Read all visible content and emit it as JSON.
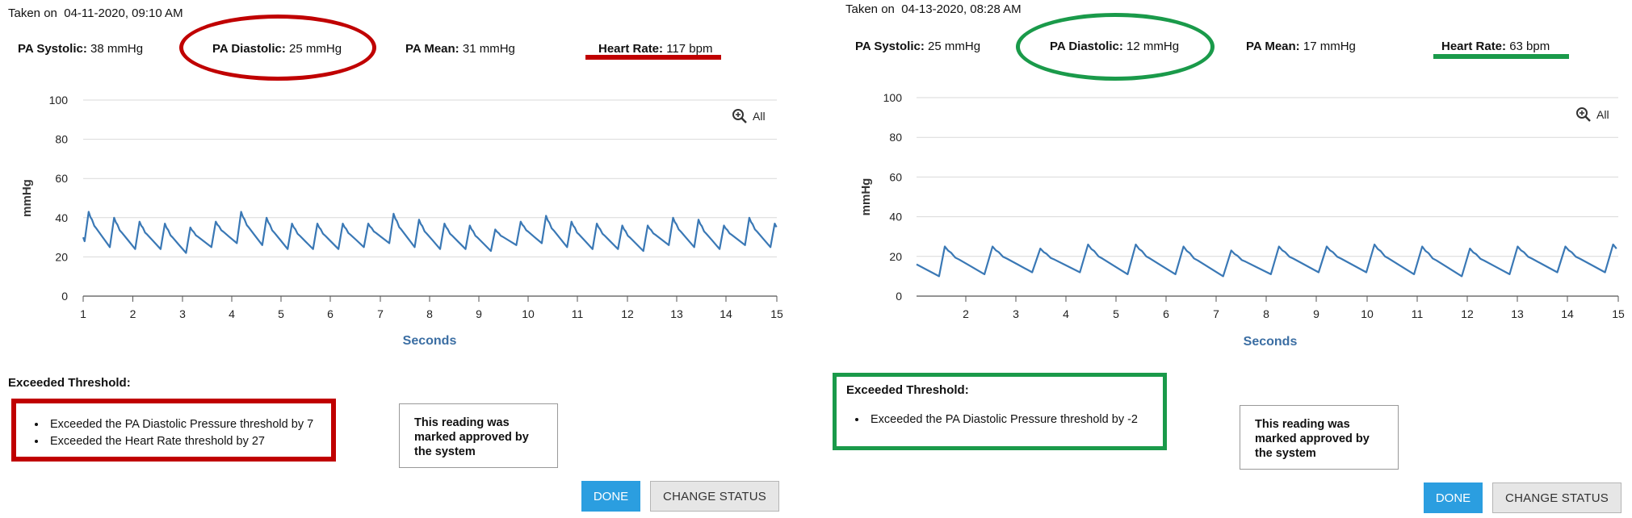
{
  "colors": {
    "alert": "#c00000",
    "ok": "#1a9a4a",
    "wave": "#3a78b5",
    "axis_label": "#3b6ea3",
    "done": "#2b9ee0"
  },
  "panels": [
    {
      "taken_label": "Taken on",
      "taken_value": "04-11-2020, 09:10 AM",
      "metrics": {
        "systolic_label": "PA Systolic:",
        "systolic_value": "38 mmHg",
        "diastolic_label": "PA Diastolic:",
        "diastolic_value": "25 mmHg",
        "mean_label": "PA Mean:",
        "mean_value": "31 mmHg",
        "hr_label": "Heart Rate:",
        "hr_value": "117 bpm"
      },
      "zoom_label": "All",
      "threshold_title": "Exceeded Threshold:",
      "threshold_items": [
        "Exceeded the PA Diastolic Pressure threshold by 7",
        "Exceeded the Heart Rate threshold by 27"
      ],
      "approved_text": "This reading was marked approved by the system",
      "done_label": "DONE",
      "change_label": "CHANGE STATUS",
      "highlight_color": "#c00000"
    },
    {
      "taken_label": "Taken on",
      "taken_value": "04-13-2020, 08:28 AM",
      "metrics": {
        "systolic_label": "PA Systolic:",
        "systolic_value": "25 mmHg",
        "diastolic_label": "PA Diastolic:",
        "diastolic_value": "12 mmHg",
        "mean_label": "PA Mean:",
        "mean_value": "17 mmHg",
        "hr_label": "Heart Rate:",
        "hr_value": "63 bpm"
      },
      "zoom_label": "All",
      "threshold_title": "Exceeded Threshold:",
      "threshold_items": [
        "Exceeded the PA Diastolic Pressure threshold by -2"
      ],
      "approved_text": "This reading was marked approved by the system",
      "done_label": "DONE",
      "change_label": "CHANGE STATUS",
      "highlight_color": "#1a9a4a"
    }
  ],
  "chart_data": [
    {
      "type": "line",
      "title": "",
      "xlabel": "Seconds",
      "ylabel": "mmHg",
      "xlim": [
        1,
        15
      ],
      "ylim": [
        0,
        100
      ],
      "yticks": [
        0,
        20,
        40,
        60,
        80,
        100
      ],
      "xticks": [
        "1",
        "2",
        "3",
        "4",
        "5",
        "6",
        "7",
        "8",
        "9",
        "10",
        "11",
        "12",
        "13",
        "14",
        "15"
      ],
      "grid": "horizontal",
      "waveform": {
        "heart_rate_bpm": 117,
        "systolic_peak_mmHg": 38,
        "diastolic_trough_mmHg": 25,
        "range_mmHg": [
          22,
          43
        ]
      },
      "peaks_mmHg": [
        43,
        40,
        38,
        37,
        35,
        38,
        43,
        40,
        37,
        37,
        37,
        37,
        42,
        39,
        37,
        36,
        34,
        38,
        41,
        38,
        37,
        36,
        36,
        40,
        39,
        36,
        40,
        37
      ],
      "troughs_mmHg": [
        27,
        25,
        24,
        24,
        22,
        25,
        27,
        26,
        24,
        24,
        24,
        25,
        27,
        25,
        24,
        24,
        23,
        26,
        27,
        25,
        24,
        24,
        23,
        26,
        25,
        24,
        26,
        25
      ]
    },
    {
      "type": "line",
      "title": "",
      "xlabel": "Seconds",
      "ylabel": "mmHg",
      "xlim": [
        1,
        15
      ],
      "ylim": [
        0,
        100
      ],
      "yticks": [
        0,
        20,
        40,
        60,
        80,
        100
      ],
      "xticks": [
        "2",
        "3",
        "4",
        "5",
        "6",
        "7",
        "8",
        "9",
        "10",
        "11",
        "12",
        "13",
        "14",
        "15"
      ],
      "grid": "horizontal",
      "waveform": {
        "heart_rate_bpm": 63,
        "systolic_peak_mmHg": 25,
        "diastolic_trough_mmHg": 12,
        "range_mmHg": [
          9,
          26
        ]
      },
      "start_mmHg": 16,
      "peaks_mmHg": [
        25,
        25,
        24,
        26,
        26,
        25,
        23,
        25,
        25,
        26,
        25,
        24,
        25,
        25,
        26
      ],
      "troughs_mmHg": [
        10,
        11,
        12,
        12,
        11,
        11,
        10,
        11,
        12,
        12,
        11,
        10,
        11,
        12,
        12
      ]
    }
  ]
}
